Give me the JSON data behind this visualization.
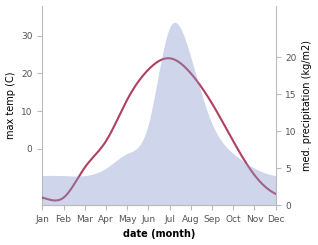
{
  "months": [
    "Jan",
    "Feb",
    "Mar",
    "Apr",
    "May",
    "Jun",
    "Jul",
    "Aug",
    "Sep",
    "Oct",
    "Nov",
    "Dec"
  ],
  "temp": [
    -13,
    -13,
    -5,
    2,
    13,
    21,
    24,
    20,
    12,
    2,
    -7,
    -12
  ],
  "precip": [
    4,
    4,
    4,
    5,
    7,
    11,
    24,
    20,
    11,
    7,
    5,
    4
  ],
  "temp_ylim": [
    -15,
    38
  ],
  "precip_ylim": [
    0,
    27
  ],
  "temp_yticks": [
    0,
    10,
    20,
    30
  ],
  "precip_yticks": [
    0,
    5,
    10,
    15,
    20
  ],
  "line_color": "#b04060",
  "fill_color": "#8898cc",
  "fill_alpha": 0.4,
  "xlabel": "date (month)",
  "ylabel_left": "max temp (C)",
  "ylabel_right": "med. precipitation (kg/m2)",
  "bg_color": "#ffffff",
  "label_fontsize": 7,
  "tick_fontsize": 6.5
}
